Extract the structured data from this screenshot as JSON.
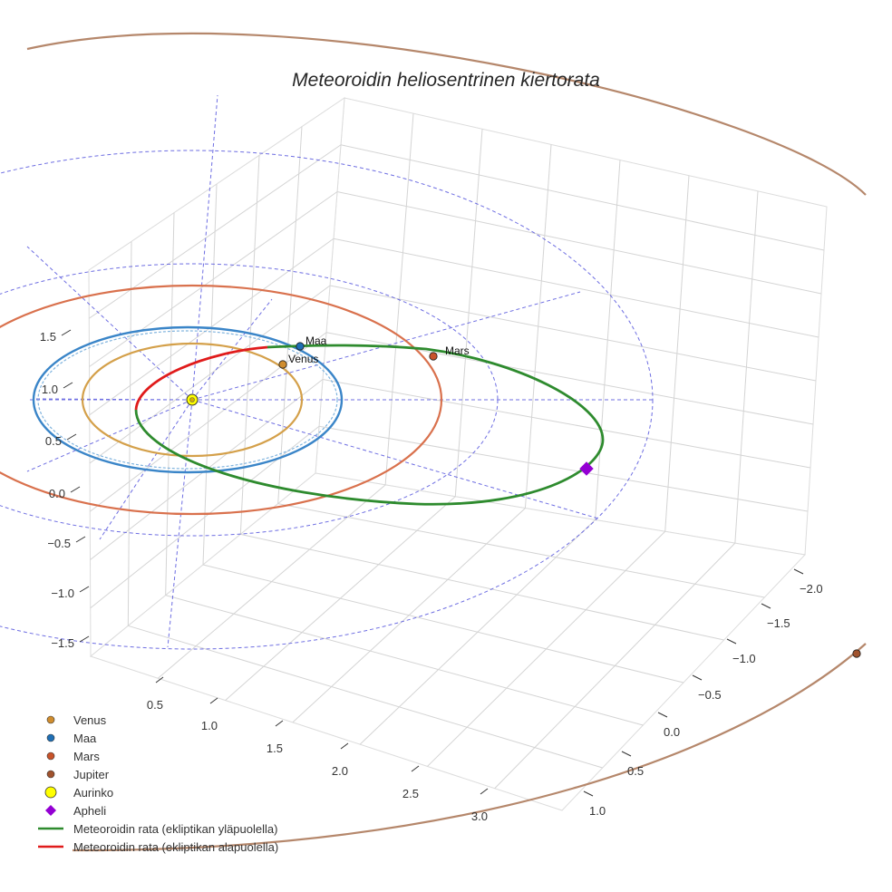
{
  "chart_data": {
    "type": "scatter",
    "title": "Meteoroidin heliosentrinen kiertorata",
    "axis_ticks": {
      "x": [
        "0.5",
        "1.0",
        "1.5",
        "2.0",
        "2.5",
        "3.0"
      ],
      "y": [
        "−2.0",
        "−1.5",
        "−1.0",
        "−0.5",
        "0.0",
        "0.5",
        "1.0"
      ],
      "z": [
        "−1.5",
        "−1.0",
        "−0.5",
        "0.0",
        "0.5",
        "1.0",
        "1.5"
      ]
    },
    "grid": true,
    "legend": "bottom-left",
    "colors": {
      "venus": "#d08d2e",
      "maa": "#1f6fb5",
      "mars": "#c8532a",
      "jupiter": "#a0522d",
      "jupiter_orbit": "#b5876b",
      "aurinko": "#ffff00",
      "apheli": "#9400d3",
      "rata_ylapuolella": "#2e8b2e",
      "rata_alapuolella": "#e01b1b",
      "venus_orbit": "#d4a04a",
      "maa_orbit": "#3a85c8",
      "mars_orbit": "#d9714d",
      "guides": "#5555dd"
    },
    "point_labels": [
      {
        "text": "Maa"
      },
      {
        "text": "Venus"
      },
      {
        "text": "Mars"
      }
    ],
    "series": [
      {
        "name": "Venus",
        "marker": "circle"
      },
      {
        "name": "Maa",
        "marker": "circle"
      },
      {
        "name": "Mars",
        "marker": "circle"
      },
      {
        "name": "Jupiter",
        "marker": "circle"
      },
      {
        "name": "Aurinko",
        "marker": "circle"
      },
      {
        "name": "Apheli",
        "marker": "diamond"
      },
      {
        "name": "Meteoroidin rata (ekliptikan yläpuolella)",
        "marker": "line"
      },
      {
        "name": "Meteoroidin rata (ekliptikan alapuolella)",
        "marker": "line"
      }
    ]
  }
}
